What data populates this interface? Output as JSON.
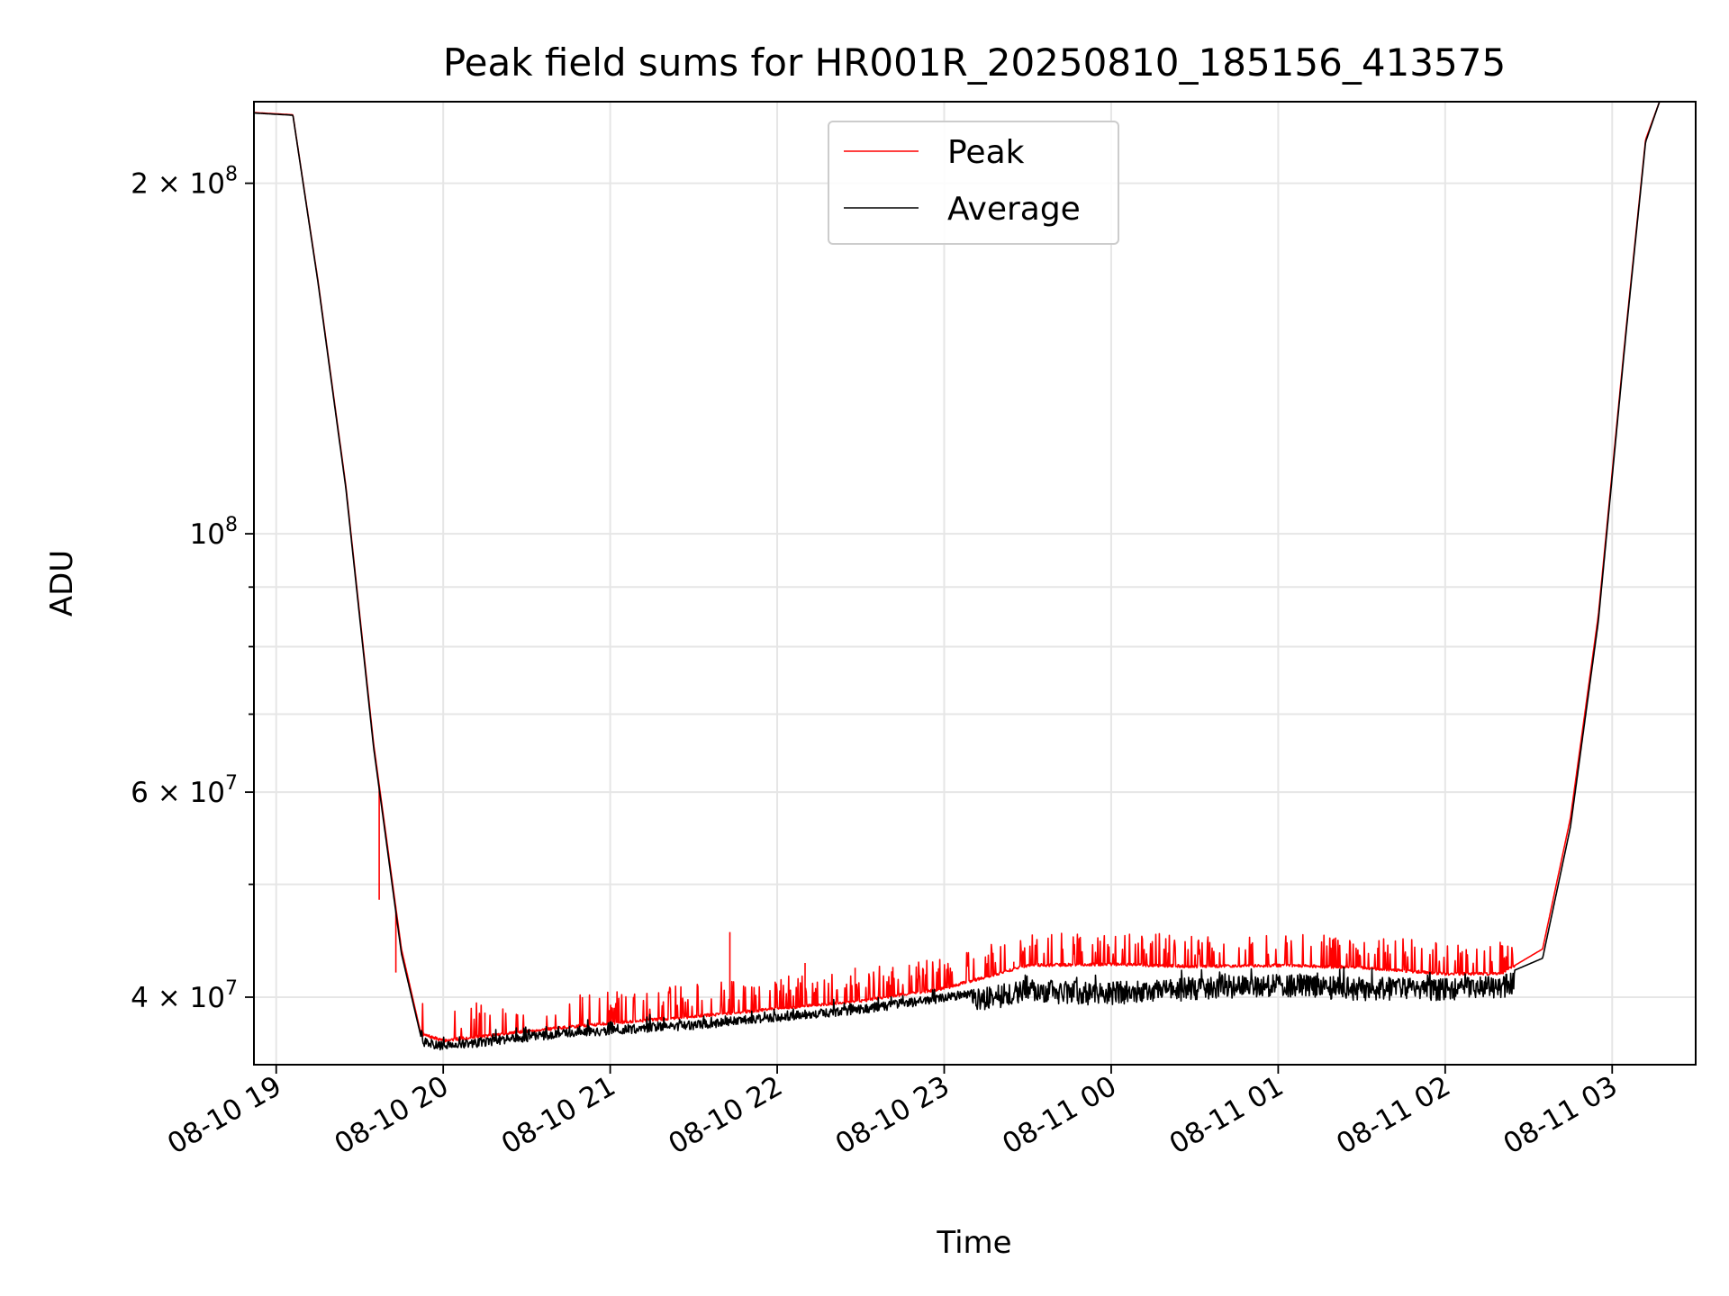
{
  "chart_data": {
    "type": "line",
    "title": "Peak field sums for HR001R_20250810_185156_413575",
    "xlabel": "Time",
    "ylabel": "ADU",
    "y_scale": "log",
    "xlim": [
      "2025-08-10 18:52",
      "2025-08-11 03:30"
    ],
    "ylim": [
      35000000,
      235000000
    ],
    "grid": true,
    "legend_position": "upper-center",
    "x_ticks": [
      {
        "t": "2025-08-10 19:00",
        "label": "08-10 19"
      },
      {
        "t": "2025-08-10 20:00",
        "label": "08-10 20"
      },
      {
        "t": "2025-08-10 21:00",
        "label": "08-10 21"
      },
      {
        "t": "2025-08-10 22:00",
        "label": "08-10 22"
      },
      {
        "t": "2025-08-10 23:00",
        "label": "08-10 23"
      },
      {
        "t": "2025-08-11 00:00",
        "label": "08-11 00"
      },
      {
        "t": "2025-08-11 01:00",
        "label": "08-11 01"
      },
      {
        "t": "2025-08-11 02:00",
        "label": "08-11 02"
      },
      {
        "t": "2025-08-11 03:00",
        "label": "08-11 03"
      }
    ],
    "y_ticks_major": [
      {
        "value": 40000000,
        "label_base": "4 × 10",
        "label_exp": "7"
      },
      {
        "value": 60000000,
        "label_base": "6 × 10",
        "label_exp": "7"
      },
      {
        "value": 100000000,
        "label_base": "10",
        "label_exp": "8"
      },
      {
        "value": 200000000,
        "label_base": "2 × 10",
        "label_exp": "8"
      }
    ],
    "y_ticks_minor": [
      50000000,
      70000000,
      80000000,
      90000000
    ],
    "series": [
      {
        "name": "Peak",
        "color": "#ff0000",
        "base": [
          [
            "2025-08-10 18:52",
            230000000
          ],
          [
            "2025-08-10 19:06",
            229000000
          ],
          [
            "2025-08-10 19:15",
            165000000
          ],
          [
            "2025-08-10 19:25",
            110000000
          ],
          [
            "2025-08-10 19:35",
            66000000
          ],
          [
            "2025-08-10 19:45",
            44000000
          ],
          [
            "2025-08-10 19:52",
            37200000
          ],
          [
            "2025-08-10 20:00",
            36700000
          ],
          [
            "2025-08-10 20:30",
            37400000
          ],
          [
            "2025-08-10 21:00",
            38000000
          ],
          [
            "2025-08-10 21:30",
            38500000
          ],
          [
            "2025-08-10 22:00",
            39100000
          ],
          [
            "2025-08-10 22:30",
            39700000
          ],
          [
            "2025-08-10 23:00",
            40700000
          ],
          [
            "2025-08-10 23:30",
            42600000
          ],
          [
            "2025-08-11 00:00",
            42700000
          ],
          [
            "2025-08-11 00:30",
            42500000
          ],
          [
            "2025-08-11 01:00",
            42600000
          ],
          [
            "2025-08-11 01:30",
            42400000
          ],
          [
            "2025-08-11 02:00",
            41900000
          ],
          [
            "2025-08-11 02:20",
            41900000
          ],
          [
            "2025-08-11 02:35",
            44000000
          ],
          [
            "2025-08-11 02:45",
            57000000
          ],
          [
            "2025-08-11 02:55",
            85000000
          ],
          [
            "2025-08-11 03:05",
            150000000
          ],
          [
            "2025-08-11 03:12",
            218000000
          ],
          [
            "2025-08-11 03:17",
            235000000
          ]
        ],
        "spikes": [
          [
            "2025-08-10 19:37",
            48500000
          ],
          [
            "2025-08-10 19:43",
            42000000
          ],
          [
            "2025-08-10 19:50",
            38800000
          ],
          [
            "2025-08-10 20:15",
            38800000
          ],
          [
            "2025-08-10 20:50",
            40000000
          ],
          [
            "2025-08-10 21:43",
            45500000
          ],
          [
            "2025-08-10 22:10",
            42800000
          ],
          [
            "2025-08-10 22:28",
            42400000
          ],
          [
            "2025-08-10 23:25",
            42900000
          ]
        ]
      },
      {
        "name": "Average",
        "color": "#000000",
        "base": [
          [
            "2025-08-10 18:52",
            229800000
          ],
          [
            "2025-08-10 19:06",
            228800000
          ],
          [
            "2025-08-10 19:15",
            164500000
          ],
          [
            "2025-08-10 19:25",
            109500000
          ],
          [
            "2025-08-10 19:35",
            65500000
          ],
          [
            "2025-08-10 19:45",
            43600000
          ],
          [
            "2025-08-10 19:52",
            37000000
          ],
          [
            "2025-08-10 20:00",
            36600000
          ],
          [
            "2025-08-10 20:30",
            37300000
          ],
          [
            "2025-08-10 21:00",
            37800000
          ],
          [
            "2025-08-10 21:30",
            38200000
          ],
          [
            "2025-08-10 22:00",
            38800000
          ],
          [
            "2025-08-10 22:30",
            39400000
          ],
          [
            "2025-08-10 23:00",
            40300000
          ],
          [
            "2025-08-10 23:30",
            41400000
          ],
          [
            "2025-08-11 00:00",
            41200000
          ],
          [
            "2025-08-11 00:30",
            41600000
          ],
          [
            "2025-08-11 01:00",
            41900000
          ],
          [
            "2025-08-11 01:30",
            41600000
          ],
          [
            "2025-08-11 02:00",
            41600000
          ],
          [
            "2025-08-11 02:20",
            41700000
          ],
          [
            "2025-08-11 02:35",
            43200000
          ],
          [
            "2025-08-11 02:45",
            56000000
          ],
          [
            "2025-08-11 02:55",
            84000000
          ],
          [
            "2025-08-11 03:05",
            149000000
          ],
          [
            "2025-08-11 03:12",
            217000000
          ],
          [
            "2025-08-11 03:17",
            235000000
          ]
        ]
      }
    ]
  }
}
